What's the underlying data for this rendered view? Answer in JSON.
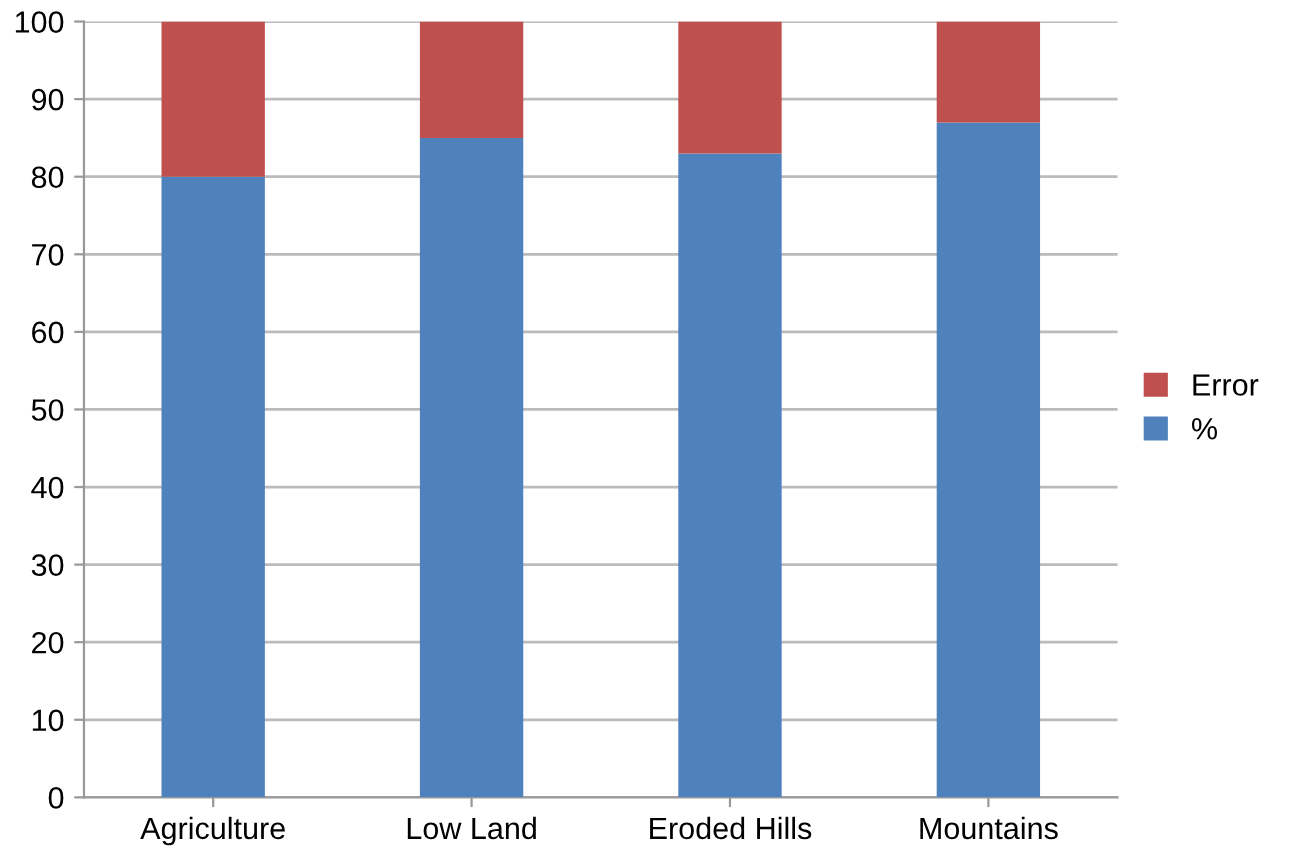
{
  "chart_data": {
    "type": "bar",
    "stacked": true,
    "categories": [
      "Agriculture",
      "Low Land",
      "Eroded Hills",
      "Mountains"
    ],
    "series": [
      {
        "name": "%",
        "color": "#4f81bd",
        "values": [
          80,
          85,
          83,
          87
        ]
      },
      {
        "name": "Error",
        "color": "#c0504d",
        "values": [
          20,
          15,
          17,
          13
        ]
      }
    ],
    "ylim": [
      0,
      100
    ],
    "yticks": [
      0,
      10,
      20,
      30,
      40,
      50,
      60,
      70,
      80,
      90,
      100
    ],
    "grid": "y",
    "legend": "right"
  }
}
